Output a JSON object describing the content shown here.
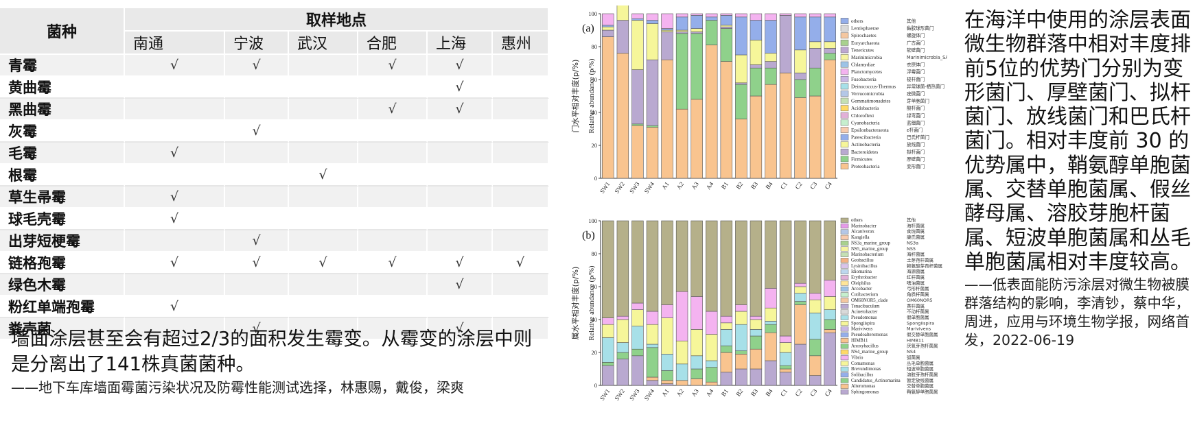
{
  "table": {
    "header_species": "菌种",
    "header_locations": "取样地点",
    "locations": [
      "南通",
      "宁波",
      "武汉",
      "合肥",
      "上海",
      "惠州"
    ],
    "rows": [
      {
        "name": "青霉",
        "cells": [
          "√",
          "√",
          "",
          "√",
          "√",
          ""
        ]
      },
      {
        "name": "黄曲霉",
        "cells": [
          "",
          "",
          "",
          "",
          "√",
          ""
        ]
      },
      {
        "name": "黑曲霉",
        "cells": [
          "",
          "",
          "",
          "√",
          "√",
          ""
        ]
      },
      {
        "name": "灰霉",
        "cells": [
          "",
          "√",
          "",
          "",
          "",
          ""
        ]
      },
      {
        "name": "毛霉",
        "cells": [
          "√",
          "",
          "",
          "",
          "",
          ""
        ]
      },
      {
        "name": "根霉",
        "cells": [
          "",
          "",
          "√",
          "",
          "",
          ""
        ]
      },
      {
        "name": "草生帚霉",
        "cells": [
          "√",
          "",
          "",
          "",
          "",
          ""
        ]
      },
      {
        "name": "球毛壳霉",
        "cells": [
          "√",
          "",
          "",
          "",
          "",
          ""
        ]
      },
      {
        "name": "出芽短梗霉",
        "cells": [
          "",
          "√",
          "",
          "",
          "",
          ""
        ]
      },
      {
        "name": "链格孢霉",
        "cells": [
          "√",
          "√",
          "√",
          "√",
          "√",
          "√"
        ]
      },
      {
        "name": "绿色木霉",
        "cells": [
          "",
          "",
          "",
          "",
          "√",
          ""
        ]
      },
      {
        "name": "粉红单端孢霉",
        "cells": [
          "√",
          "",
          "",
          "",
          "",
          ""
        ]
      },
      {
        "name": "粪壳菌",
        "cells": [
          "",
          "√",
          "",
          "",
          "√",
          ""
        ]
      }
    ]
  },
  "left_text": {
    "main": "墙面涂层甚至会有超过2/3的面积发生霉变。从霉变的涂层中则是分离出了141株真菌菌种。",
    "citation": "——地下车库墙面霉菌污染状况及防霉性能测试选择，林惠赐，戴俊，梁爽"
  },
  "right_text": {
    "main": "在海洋中使用的涂层表面微生物群落中相对丰度排前5位的优势门分别为变形菌门、厚壁菌门、拟杆菌门、放线菌门和巴氏杆菌门。相对丰度前 30 的优势属中，鞘氨醇单胞菌属、交替单胞菌属、假丝酵母属、溶胶芽胞杆菌属、短波单胞菌属和丛毛单胞菌属相对丰度较高。",
    "citation": "——低表面能防污涂层对微生物被膜群落结构的影响，李清钞，蔡中华，周进，应用与环境生物学报，网络首发，2022-06-19"
  },
  "chart_data": [
    {
      "type": "bar",
      "stacked": true,
      "panel": "(a)",
      "ylabel": "Relative abundance (p/%)",
      "ylabel_cn": "门水平相对丰度(p/%)",
      "ylim": [
        0,
        100
      ],
      "yticks": [
        0,
        20,
        40,
        60,
        80,
        100
      ],
      "categories": [
        "SW1",
        "SW2",
        "SW3",
        "SW4",
        "A1",
        "A2",
        "A3",
        "A4",
        "B1",
        "B2",
        "B3",
        "B4",
        "C1",
        "C2",
        "C3",
        "C4"
      ],
      "series": [
        {
          "name": "Proteobacteria",
          "cn": "变形菌门",
          "color": "#f9c48f",
          "values": [
            86,
            76,
            32,
            31,
            72,
            42,
            48,
            81,
            71,
            36,
            50,
            57,
            64,
            49,
            50,
            72
          ]
        },
        {
          "name": "Firmicutes",
          "cn": "厚壁菌门",
          "color": "#8fd18b",
          "values": [
            0,
            0,
            1,
            1,
            0,
            46,
            40,
            15,
            20,
            21,
            17,
            10,
            0,
            11,
            17,
            4
          ]
        },
        {
          "name": "Bacteroidetes",
          "cn": "拟杆菌门",
          "color": "#b9a9d0",
          "values": [
            4,
            20,
            33,
            40,
            17,
            1,
            1,
            0,
            1,
            1,
            2,
            4,
            35,
            4,
            12,
            3
          ]
        },
        {
          "name": "Actinobacteria",
          "cn": "放线菌门",
          "color": "#f6f69a",
          "values": [
            2,
            12,
            30,
            22,
            1,
            1,
            2,
            0,
            1,
            17,
            15,
            5,
            0,
            14,
            4,
            4
          ]
        },
        {
          "name": "Patescibacteria",
          "cn": "巴氏杆菌门",
          "color": "#94aeea",
          "values": [
            1,
            0,
            1,
            2,
            1,
            8,
            8,
            2,
            6,
            23,
            12,
            20,
            0,
            20,
            15,
            15
          ]
        },
        {
          "name": "others",
          "cn": "其他",
          "color": "#f4b3f0",
          "values": [
            7,
            2,
            3,
            4,
            9,
            2,
            1,
            2,
            1,
            2,
            4,
            4,
            1,
            2,
            2,
            2
          ]
        }
      ],
      "legend": [
        {
          "name": "others",
          "cn": "其他",
          "color": "#94aeea"
        },
        {
          "name": "Lentisphaerae",
          "cn": "黏胶球形菌门",
          "color": "#d9d9d9"
        },
        {
          "name": "Spirochaetes",
          "cn": "螺旋体门",
          "color": "#f4c7a0"
        },
        {
          "name": "Euryarchaeota",
          "cn": "广古菌门",
          "color": "#a9d18e"
        },
        {
          "name": "Tenericutes",
          "cn": "软壁菌门",
          "color": "#bda7d1"
        },
        {
          "name": "Marinimicrobia",
          "cn": "Marinimicrobia_SAR406",
          "color": "#f6f3a0"
        },
        {
          "name": "Chlamydiae",
          "cn": "衣原体门",
          "color": "#9dc3e6"
        },
        {
          "name": "Planctomycetes",
          "cn": "浮霉菌门",
          "color": "#f4b3f0"
        },
        {
          "name": "Fusobacteria",
          "cn": "梭杆菌门",
          "color": "#c9b7e5"
        },
        {
          "name": "Deinococcus-Thermus",
          "cn": "异常球菌-栖热菌门",
          "color": "#a7e0e8"
        },
        {
          "name": "Verrucomicrobia",
          "cn": "疣微菌门",
          "color": "#b4c7e7"
        },
        {
          "name": "Gemmatimonadetes",
          "cn": "芽单胞菌门",
          "color": "#c5e0b4"
        },
        {
          "name": "Acidobacteria",
          "cn": "酸杆菌门",
          "color": "#ffd966"
        },
        {
          "name": "Chloroflexi",
          "cn": "绿弯菌门",
          "color": "#e2b0d8"
        },
        {
          "name": "Cyanobacteria",
          "cn": "蓝细菌门",
          "color": "#c6efce"
        },
        {
          "name": "Epsilonbacteraeota",
          "cn": "ε杆菌门",
          "color": "#f8cbad"
        },
        {
          "name": "Patescibacteria",
          "cn": "巴氏杆菌门",
          "color": "#94aeea"
        },
        {
          "name": "Actinobacteria",
          "cn": "放线菌门",
          "color": "#f6f69a"
        },
        {
          "name": "Bacteroidetes",
          "cn": "拟杆菌门",
          "color": "#b9a9d0"
        },
        {
          "name": "Firmicutes",
          "cn": "厚壁菌门",
          "color": "#8fd18b"
        },
        {
          "name": "Proteobacteria",
          "cn": "变形菌门",
          "color": "#f9c48f"
        }
      ]
    },
    {
      "type": "bar",
      "stacked": true,
      "panel": "(b)",
      "ylabel": "Relative abundance (p/%)",
      "ylabel_cn": "属水平相对丰度(p/%)",
      "ylim": [
        0,
        100
      ],
      "yticks": [
        0,
        20,
        40,
        60,
        80,
        100
      ],
      "categories": [
        "SW1",
        "SW2",
        "SW3",
        "SW4",
        "A1",
        "A2",
        "A3",
        "A4",
        "B1",
        "B2",
        "B3",
        "B4",
        "C1",
        "C2",
        "C3",
        "C4"
      ],
      "series": [
        {
          "name": "Sphingomonas",
          "cn": "鞘氨醇单胞菌属",
          "color": "#b9a9d0",
          "values": [
            12,
            16,
            18,
            3,
            1,
            0,
            0,
            0,
            8,
            10,
            10,
            15,
            8,
            25,
            6,
            32
          ]
        },
        {
          "name": "Alteromonas",
          "cn": "交替单胞菌属",
          "color": "#f9c48f",
          "values": [
            0,
            0,
            0,
            2,
            2,
            3,
            4,
            2,
            12,
            9,
            12,
            17,
            2,
            24,
            12,
            2
          ]
        },
        {
          "name": "Candidatus_Actinomarina",
          "cn": "暂定放线菌属",
          "color": "#8fd18b",
          "values": [
            2,
            4,
            4,
            18,
            6,
            0,
            6,
            9,
            4,
            2,
            8,
            5,
            2,
            2,
            10,
            6
          ]
        },
        {
          "name": "Brevundimonas",
          "cn": "短波单胞菌属",
          "color": "#a7e0e8",
          "values": [
            15,
            6,
            14,
            2,
            10,
            10,
            8,
            4,
            10,
            16,
            4,
            2,
            8,
            5,
            16,
            6
          ]
        },
        {
          "name": "Comamonas",
          "cn": "丛毛单胞菌属",
          "color": "#f6f69a",
          "values": [
            8,
            14,
            10,
            12,
            22,
            14,
            16,
            16,
            4,
            8,
            6,
            8,
            6,
            4,
            8,
            8
          ]
        },
        {
          "name": "Vibrio",
          "cn": "弧菌属",
          "color": "#f4b3f0",
          "values": [
            4,
            2,
            4,
            8,
            8,
            30,
            20,
            14,
            4,
            4,
            2,
            12,
            4,
            2,
            4,
            10
          ]
        },
        {
          "name": "others",
          "cn": "其他",
          "color": "#b5b08a",
          "values": [
            59,
            58,
            50,
            55,
            51,
            43,
            46,
            55,
            58,
            51,
            58,
            41,
            70,
            38,
            44,
            36
          ]
        }
      ],
      "legend": [
        {
          "name": "others",
          "cn": "其他",
          "color": "#b5b08a"
        },
        {
          "name": "Marinobacter",
          "cn": "海杆菌属",
          "color": "#e59be8"
        },
        {
          "name": "Alcanivorax",
          "cn": "食烷菌属",
          "color": "#b4c7e7"
        },
        {
          "name": "Kangiella",
          "cn": "康氏菌属",
          "color": "#f8cbad"
        },
        {
          "name": "NS3a_marine_group",
          "cn": "NS3a",
          "color": "#a9d18e"
        },
        {
          "name": "NS5_marine_group",
          "cn": "NS5",
          "color": "#f6f3a0"
        },
        {
          "name": "Marinobacterium",
          "cn": "海杆菌属",
          "color": "#c5e0b4"
        },
        {
          "name": "Geobacillus",
          "cn": "土芽孢杆菌属",
          "color": "#f4b183"
        },
        {
          "name": "Lysinibacillus",
          "cn": "赖氨酸芽孢杆菌属",
          "color": "#d9c3e9"
        },
        {
          "name": "Idiomarina",
          "cn": "海源菌属",
          "color": "#bdd7ee"
        },
        {
          "name": "Erythrobacter",
          "cn": "红杆菌属",
          "color": "#e2b0d8"
        },
        {
          "name": "Oleiphilus",
          "cn": "嗜油菌属",
          "color": "#ffe699"
        },
        {
          "name": "Arcobacter",
          "cn": "弓形杆菌属",
          "color": "#9dc3e6"
        },
        {
          "name": "Cutibacterium",
          "cn": "角质杆菌属",
          "color": "#c6efce"
        },
        {
          "name": "OM60NOR5_clade",
          "cn": "OM60NOR5",
          "color": "#f4c7a0"
        },
        {
          "name": "Tenacibaculum",
          "cn": "黄杆菌属",
          "color": "#b9a9d0"
        },
        {
          "name": "Acinetobacter",
          "cn": "不动杆菌属",
          "color": "#d9d9d9"
        },
        {
          "name": "Pseudomonas",
          "cn": "假单胞菌属",
          "color": "#a7e0e8"
        },
        {
          "name": "Spongiispira",
          "cn": "Spongiispira",
          "color": "#f6f69a"
        },
        {
          "name": "Marivivens",
          "cn": "Marivivens",
          "color": "#c9b7e5"
        },
        {
          "name": "Pseudoalteromonas",
          "cn": "假交替单胞菌属",
          "color": "#94aeea"
        },
        {
          "name": "HIMB11",
          "cn": "HIMB11",
          "color": "#f9c48f"
        },
        {
          "name": "Anoxybacillus",
          "cn": "厌氧芽孢杆菌属",
          "color": "#8fd18b"
        },
        {
          "name": "NS4_marine_group",
          "cn": "NS4",
          "color": "#ffd966"
        },
        {
          "name": "Vibrio",
          "cn": "弧菌属",
          "color": "#f4b3f0"
        },
        {
          "name": "Comamonas",
          "cn": "丛毛单胞菌属",
          "color": "#f6f69a"
        },
        {
          "name": "Brevundimonas",
          "cn": "短波单胞菌属",
          "color": "#a7e0e8"
        },
        {
          "name": "Solibacillus",
          "cn": "溶胶芽孢杆菌属",
          "color": "#94aeea"
        },
        {
          "name": "Candidatus_Actinomarina",
          "cn": "暂定放线菌属",
          "color": "#8fd18b"
        },
        {
          "name": "Alteromonas",
          "cn": "交替单胞菌属",
          "color": "#f9c48f"
        },
        {
          "name": "Sphingomonas",
          "cn": "鞘氨醇单胞菌属",
          "color": "#b9a9d0"
        }
      ]
    }
  ]
}
